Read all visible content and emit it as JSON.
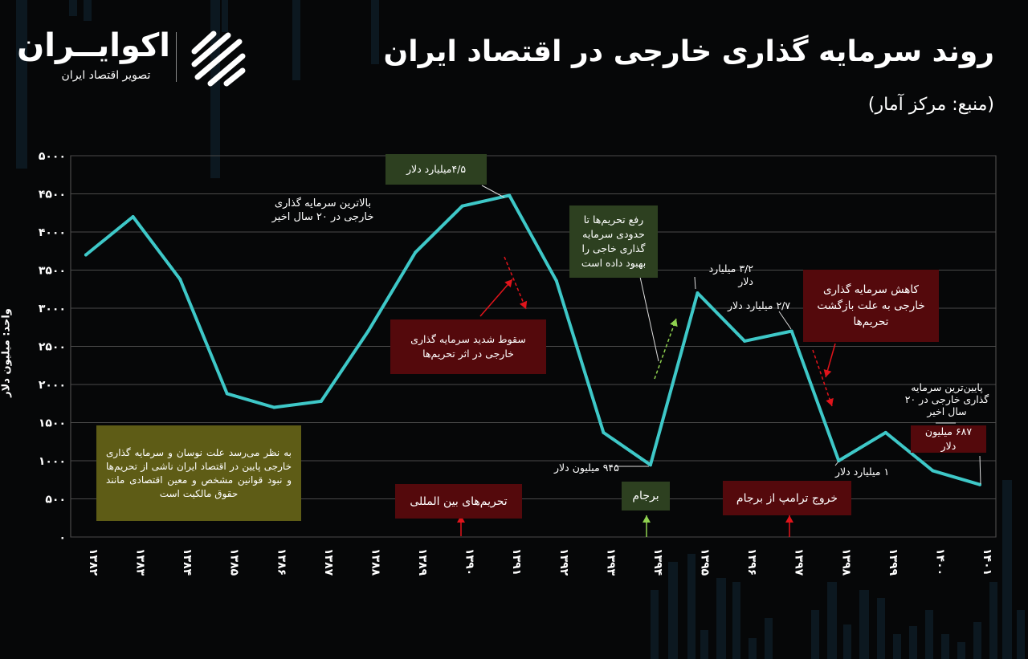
{
  "title": "روند سرمایه گذاری خارجی در اقتصاد ایران",
  "source": "(منبع: مرکز آمار)",
  "logo": {
    "name": "اکوایــران",
    "tagline": "تصویر اقتصاد ایران",
    "icon": "ecoiran-logo-icon"
  },
  "colors": {
    "background": "#060708",
    "line": "#3ec8c8",
    "grid": "#4a4a4a",
    "green_box": "#2d4020",
    "red_box": "#54090c",
    "olive_box": "#5e5c16",
    "red_arrow": "#e0141b",
    "green_arrow": "#8fd14f"
  },
  "chart_data": {
    "type": "line",
    "title": "روند سرمایه گذاری خارجی در اقتصاد ایران",
    "ylabel": "واحد: میلیون دلار",
    "ylim": [
      0,
      5000
    ],
    "yticks": [
      "۰",
      "۵۰۰",
      "۱۰۰۰",
      "۱۵۰۰",
      "۲۰۰۰",
      "۲۵۰۰",
      "۳۰۰۰",
      "۳۵۰۰",
      "۴۰۰۰",
      "۴۵۰۰",
      "۵۰۰۰"
    ],
    "categories": [
      "۱۳۸۲",
      "۱۳۸۳",
      "۱۳۸۴",
      "۱۳۸۵",
      "۱۳۸۶",
      "۱۳۸۷",
      "۱۳۸۸",
      "۱۳۸۹",
      "۱۳۹۰",
      "۱۳۹۱",
      "۱۳۹۲",
      "۱۳۹۳",
      "۱۳۹۴",
      "۱۳۹۵",
      "۱۳۹۶",
      "۱۳۹۷",
      "۱۳۹۸",
      "۱۳۹۹",
      "۱۴۰۰",
      "۱۴۰۱"
    ],
    "values": [
      3700,
      4200,
      3380,
      1880,
      1700,
      1780,
      2700,
      3730,
      4340,
      4480,
      3360,
      1370,
      945,
      3200,
      2570,
      2700,
      1000,
      1370,
      870,
      687
    ],
    "grid": true,
    "legend": "none"
  },
  "annotations": {
    "highest": "بالاترین سرمایه گذاری\nخارجی در ۲۰ سال اخیر",
    "peak_value": "۴/۵میلیارد دلار",
    "lowest": "پایین‌ترین سرمایه\nگذاری خارجی در ۲۰\nسال اخیر",
    "lowest_value": "۶۸۷ میلیون دلار",
    "val_945": "۹۴۵ میلیون دلار",
    "val_3_2": "۳/۲ میلیارد\nدلار",
    "val_2_7": "۲/۷ میلیارد دلار",
    "val_1": "۱ میلیارد دلار",
    "sanctions_drop": "سقوط شدید سرمایه گذاری\nخارجی در اثر تحریم‌ها",
    "lifting_sanctions": "رفع تحریم‌ها تا\nحدودی سرمایه\nگذاری خاجی را\nبهبود داده است",
    "return_sanctions": "کاهش سرمایه گذاری\nخارجی به علت بازگشت\nتحریم‌ها",
    "olive_note": "به نظر می‌رسد علت نوسان و سرمایه گذاری خارجی پایین در اقتصاد ایران ناشی از تحریم‌ها و نبود قوانین مشخص و معین اقتصادی مانند حقوق مالکیت است",
    "event_sanctions": "تحریم‌های بین المللی",
    "event_jcpoa": "برجام",
    "event_trump": "خروج ترامپ از برجام"
  }
}
